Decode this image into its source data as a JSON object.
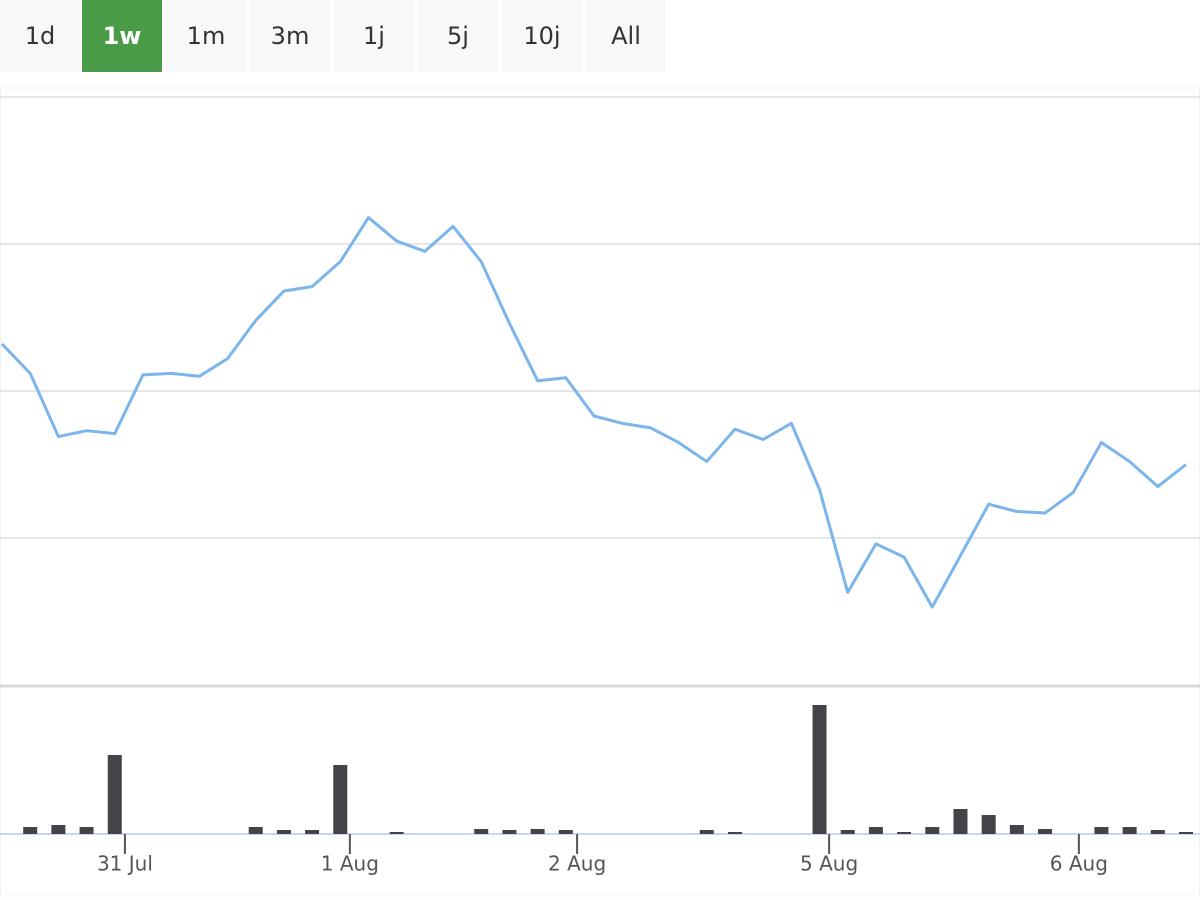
{
  "range_buttons": {
    "labels": [
      "1d",
      "1w",
      "1m",
      "3m",
      "1j",
      "5j",
      "10j",
      "All"
    ],
    "selected": 1
  },
  "chart_data": [
    {
      "type": "line",
      "color": "#7cb5ec",
      "x": [
        0,
        1,
        2,
        3,
        4,
        5,
        6,
        7,
        8,
        9,
        10,
        11,
        12,
        13,
        14,
        15,
        16,
        17,
        18,
        19,
        20,
        21,
        22,
        23,
        24,
        25,
        26,
        27,
        28,
        29,
        30,
        31,
        32,
        33,
        34,
        35,
        36,
        37,
        38,
        39,
        40,
        41,
        42
      ],
      "values": [
        2.32,
        2.12,
        1.69,
        1.73,
        1.71,
        2.11,
        2.12,
        2.1,
        2.22,
        2.48,
        2.68,
        2.71,
        2.88,
        3.18,
        3.02,
        2.95,
        3.12,
        2.88,
        2.46,
        2.07,
        2.09,
        1.83,
        1.78,
        1.75,
        1.65,
        1.52,
        1.74,
        1.67,
        1.78,
        1.33,
        0.63,
        0.96,
        0.87,
        0.53,
        0.88,
        1.23,
        1.18,
        1.17,
        1.31,
        1.65,
        1.52,
        1.35,
        1.5
      ],
      "xlim": [
        0,
        42
      ],
      "ylim": [
        0,
        4
      ],
      "yticks": [
        1,
        2,
        3,
        4
      ],
      "grid": true
    },
    {
      "type": "bar",
      "color": "#434348",
      "x": [
        0,
        1,
        2,
        3,
        4,
        5,
        6,
        7,
        8,
        9,
        10,
        11,
        12,
        13,
        14,
        15,
        16,
        17,
        18,
        19,
        20,
        21,
        22,
        23,
        24,
        25,
        26,
        27,
        28,
        29,
        30,
        31,
        32,
        33,
        34,
        35,
        36,
        37,
        38,
        39,
        40,
        41,
        42
      ],
      "values": [
        0,
        7,
        9,
        7,
        79,
        0,
        0,
        0,
        0,
        7,
        4,
        4,
        69,
        0,
        2,
        0,
        0,
        5,
        4,
        5,
        4,
        0,
        0,
        0,
        0,
        4,
        2,
        0,
        0,
        129,
        4,
        7,
        2,
        7,
        25,
        19,
        9,
        5,
        0,
        7,
        7,
        4,
        2
      ],
      "xlim": [
        0,
        42
      ],
      "ylim": [
        0,
        140
      ],
      "xticks": [
        {
          "value": 4.36,
          "label": "31 Jul"
        },
        {
          "value": 12.34,
          "label": "1 Aug"
        },
        {
          "value": 20.4,
          "label": "2 Aug"
        },
        {
          "value": 29.34,
          "label": "5 Aug"
        },
        {
          "value": 38.2,
          "label": "6 Aug"
        }
      ]
    }
  ]
}
